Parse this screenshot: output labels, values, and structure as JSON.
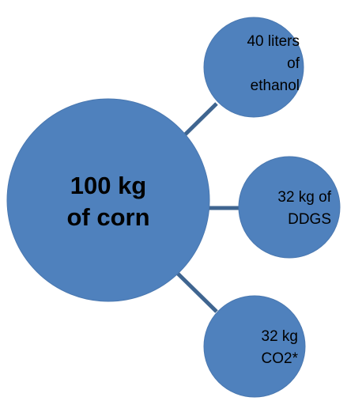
{
  "nodes": [
    {
      "lines": [
        "100 kg",
        "of corn"
      ]
    },
    {
      "lines": [
        "40 liters",
        "of",
        "ethanol"
      ]
    },
    {
      "lines": [
        "32 kg of",
        "DDGS"
      ]
    },
    {
      "lines": [
        "32 kg",
        "CO2*"
      ]
    }
  ]
}
